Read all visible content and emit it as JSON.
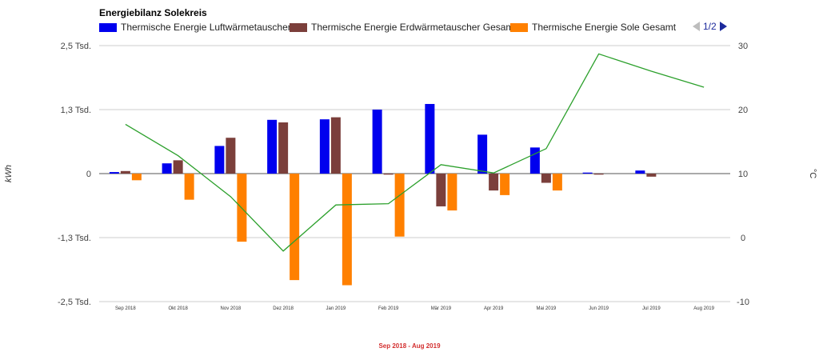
{
  "title": "Energiebilanz Solekreis",
  "pager": {
    "label": "1/2"
  },
  "footer": "Sep 2018 - Aug 2019",
  "chart_data": {
    "type": "bar",
    "title": "Energiebilanz Solekreis",
    "categories": [
      "Sep 2018",
      "Okt 2018",
      "Nov 2018",
      "Dez 2018",
      "Jan 2019",
      "Feb 2019",
      "Mär 2019",
      "Apr 2019",
      "Mai 2019",
      "Jun 2019",
      "Jul 2019",
      "Aug 2019"
    ],
    "ylabel": "kWh",
    "y2label": "°C",
    "ylim": [
      -2500,
      2500
    ],
    "y2lim": [
      -10,
      30
    ],
    "yticks": [
      "2,5 Tsd.",
      "1,3 Tsd.",
      "0",
      "-1,3 Tsd.",
      "-2,5 Tsd."
    ],
    "yticks_values": [
      2500,
      1250,
      0,
      -1250,
      -2500
    ],
    "y2ticks": [
      "30",
      "20",
      "10",
      "0",
      "-10"
    ],
    "y2ticks_values": [
      30,
      20,
      10,
      0,
      -10
    ],
    "legend_position": "top",
    "grid": true,
    "series": [
      {
        "name": "Thermische Energie Luftwärmetauscher",
        "color": "#0000ee",
        "axis": "left",
        "values": [
          30,
          200,
          540,
          1050,
          1060,
          1250,
          1360,
          760,
          510,
          20,
          60,
          0
        ]
      },
      {
        "name": "Thermische Energie Erdwärmetauscher Gesamt",
        "color": "#7b3f3b",
        "axis": "left",
        "values": [
          50,
          260,
          700,
          1000,
          1100,
          -20,
          -640,
          -330,
          -180,
          -20,
          -60,
          0
        ]
      },
      {
        "name": "Thermische Energie Sole Gesamt",
        "color": "#ff8000",
        "axis": "left",
        "values": [
          -130,
          -510,
          -1330,
          -2080,
          -2180,
          -1230,
          -720,
          -420,
          -330,
          0,
          0,
          0
        ]
      },
      {
        "name": "",
        "type": "line",
        "color": "#2ca02c",
        "axis": "right",
        "values": [
          17.7,
          12.8,
          6.4,
          -2.1,
          5.1,
          5.3,
          11.4,
          10.1,
          13.9,
          28.7,
          26.0,
          23.5
        ]
      }
    ]
  }
}
